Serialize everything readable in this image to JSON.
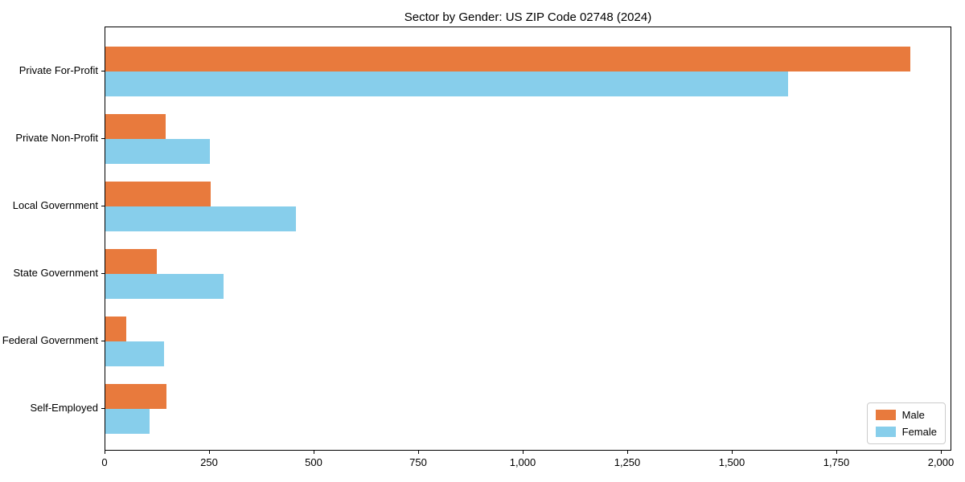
{
  "title": "Sector by Gender: US ZIP Code 02748 (2024)",
  "chart_data": {
    "type": "bar",
    "orientation": "horizontal",
    "title": "Sector by Gender: US ZIP Code 02748 (2024)",
    "categories": [
      "Private For-Profit",
      "Private Non-Profit",
      "Local Government",
      "State Government",
      "Federal Government",
      "Self-Employed"
    ],
    "series": [
      {
        "name": "Male",
        "color": "#E87A3D",
        "values": [
          1925,
          145,
          252,
          124,
          50,
          147
        ]
      },
      {
        "name": "Female",
        "color": "#87CEEB",
        "values": [
          1632,
          250,
          455,
          283,
          141,
          106
        ]
      }
    ],
    "xlabel": "",
    "ylabel": "",
    "xlim": [
      0,
      2000
    ],
    "xticks": [
      0,
      250,
      500,
      750,
      1000,
      1250,
      1500,
      1750,
      2000
    ],
    "xticklabels": [
      "0",
      "250",
      "500",
      "750",
      "1,000",
      "1,250",
      "1,500",
      "1,750",
      "2,000"
    ],
    "grid": false,
    "legend_position": "lower right",
    "plot_border_color": "#000000",
    "background_color": "#ffffff"
  },
  "legend": {
    "items": [
      {
        "label": "Male",
        "color": "#E87A3D"
      },
      {
        "label": "Female",
        "color": "#87CEEB"
      }
    ]
  }
}
